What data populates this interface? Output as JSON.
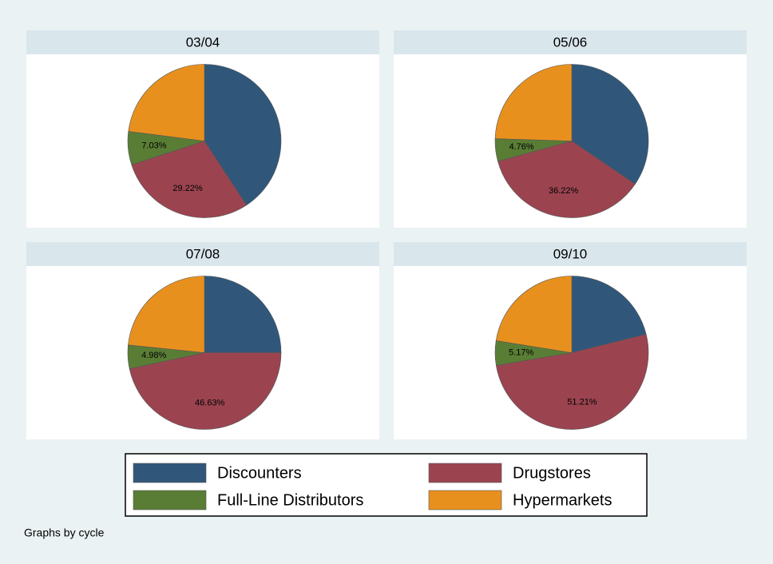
{
  "chart_data": [
    {
      "type": "pie",
      "title": "03/04",
      "categories": [
        "Discounters",
        "Drugstores",
        "Full-Line Distributors",
        "Hypermarkets"
      ],
      "values": [
        40.75,
        29.22,
        7.03,
        23.0
      ],
      "value_labels": [
        null,
        "29.22%",
        "7.03%",
        null
      ],
      "colors": [
        "#30577a",
        "#9b4450",
        "#5a7d35",
        "#e8901e"
      ]
    },
    {
      "type": "pie",
      "title": "05/06",
      "categories": [
        "Discounters",
        "Drugstores",
        "Full-Line Distributors",
        "Hypermarkets"
      ],
      "values": [
        34.5,
        36.22,
        4.76,
        24.52
      ],
      "value_labels": [
        null,
        "36.22%",
        "4.76%",
        null
      ],
      "colors": [
        "#30577a",
        "#9b4450",
        "#5a7d35",
        "#e8901e"
      ]
    },
    {
      "type": "pie",
      "title": "07/08",
      "categories": [
        "Discounters",
        "Drugstores",
        "Full-Line Distributors",
        "Hypermarkets"
      ],
      "values": [
        25.0,
        46.63,
        4.98,
        23.39
      ],
      "value_labels": [
        null,
        "46.63%",
        "4.98%",
        null
      ],
      "colors": [
        "#30577a",
        "#9b4450",
        "#5a7d35",
        "#e8901e"
      ]
    },
    {
      "type": "pie",
      "title": "09/10",
      "categories": [
        "Discounters",
        "Drugstores",
        "Full-Line Distributors",
        "Hypermarkets"
      ],
      "values": [
        21.12,
        51.21,
        5.17,
        22.5
      ],
      "value_labels": [
        null,
        "51.21%",
        "5.17%",
        null
      ],
      "colors": [
        "#30577a",
        "#9b4450",
        "#5a7d35",
        "#e8901e"
      ]
    }
  ],
  "note": "Graphs by cycle"
}
